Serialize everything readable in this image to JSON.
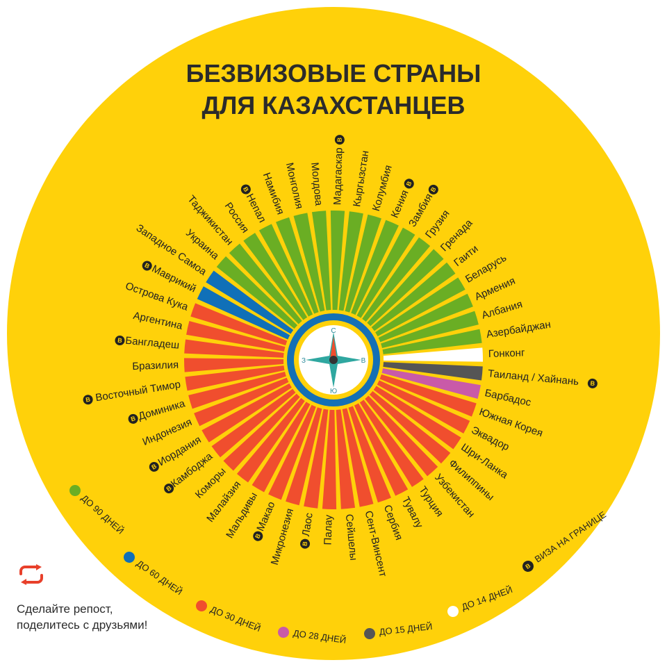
{
  "title": {
    "line1": "БЕЗВИЗОВЫЕ СТРАНЫ",
    "line2": "ДЛЯ КАЗАХСТАНЦЕВ"
  },
  "compass": {
    "n": "С",
    "s": "Ю",
    "w": "З",
    "e": "В"
  },
  "colors": {
    "background": "#FFD10A",
    "90": "#6AAE24",
    "60": "#1070B8",
    "30": "#F04E2E",
    "28": "#C95AA8",
    "15": "#555555",
    "14": "#FFFFFF",
    "ring": "#1470B5",
    "share": "#E8402B"
  },
  "legend": [
    {
      "key": "90",
      "label": "ДО 90 ДНЕЙ"
    },
    {
      "key": "60",
      "label": "ДО 60 ДНЕЙ"
    },
    {
      "key": "30",
      "label": "ДО 30 ДНЕЙ"
    },
    {
      "key": "28",
      "label": "ДО 28 ДНЕЙ"
    },
    {
      "key": "15",
      "label": "ДО 15 ДНЕЙ"
    },
    {
      "key": "14",
      "label": "ДО 14 ДНЕЙ"
    },
    {
      "key": "visa",
      "label": "ВИЗА НА ГРАНИЦЕ"
    }
  ],
  "share": {
    "icon": "repost-icon",
    "text": "Сделайте репост, поделитесь с друзьями!"
  },
  "chart_data": {
    "type": "radial-bar",
    "title": "БЕЗВИЗОВЫЕ СТРАНЫ ДЛЯ КАЗАХСТАНЦЕВ",
    "value_unit": "дней",
    "countries": [
      {
        "name": "Гонконг",
        "days": 14,
        "visa_on_border": false
      },
      {
        "name": "Таиланд / Хайнань",
        "days": 15,
        "visa_on_border": true
      },
      {
        "name": "Барбадос",
        "days": 28,
        "visa_on_border": false
      },
      {
        "name": "Южная Корея",
        "days": 30,
        "visa_on_border": false
      },
      {
        "name": "Эквадор",
        "days": 30,
        "visa_on_border": false
      },
      {
        "name": "Шри-Ланка",
        "days": 30,
        "visa_on_border": false
      },
      {
        "name": "Филиппины",
        "days": 30,
        "visa_on_border": false
      },
      {
        "name": "Узбекистан",
        "days": 30,
        "visa_on_border": false
      },
      {
        "name": "Турция",
        "days": 30,
        "visa_on_border": false
      },
      {
        "name": "Тувалу",
        "days": 30,
        "visa_on_border": false
      },
      {
        "name": "Сербия",
        "days": 30,
        "visa_on_border": false
      },
      {
        "name": "Сент-Винсент",
        "days": 30,
        "visa_on_border": false
      },
      {
        "name": "Сейшелы",
        "days": 30,
        "visa_on_border": false
      },
      {
        "name": "Палау",
        "days": 30,
        "visa_on_border": false
      },
      {
        "name": "Лаос",
        "days": 30,
        "visa_on_border": true
      },
      {
        "name": "Микронезия",
        "days": 30,
        "visa_on_border": false
      },
      {
        "name": "Макао",
        "days": 30,
        "visa_on_border": true
      },
      {
        "name": "Мальдивы",
        "days": 30,
        "visa_on_border": false
      },
      {
        "name": "Малайзия",
        "days": 30,
        "visa_on_border": false
      },
      {
        "name": "Коморы",
        "days": 30,
        "visa_on_border": false
      },
      {
        "name": "Камбоджа",
        "days": 30,
        "visa_on_border": true
      },
      {
        "name": "Иордания",
        "days": 30,
        "visa_on_border": true
      },
      {
        "name": "Индонезия",
        "days": 30,
        "visa_on_border": false
      },
      {
        "name": "Доминика",
        "days": 30,
        "visa_on_border": true
      },
      {
        "name": "Восточный Тимор",
        "days": 30,
        "visa_on_border": true
      },
      {
        "name": "Бразилия",
        "days": 30,
        "visa_on_border": false
      },
      {
        "name": "Бангладеш",
        "days": 30,
        "visa_on_border": true
      },
      {
        "name": "Аргентина",
        "days": 30,
        "visa_on_border": false
      },
      {
        "name": "Острова Кука",
        "days": 30,
        "visa_on_border": false
      },
      {
        "name": "Маврикий",
        "days": 60,
        "visa_on_border": true
      },
      {
        "name": "Западное Самоа",
        "days": 60,
        "visa_on_border": false
      },
      {
        "name": "Украина",
        "days": 90,
        "visa_on_border": false
      },
      {
        "name": "Таджикистан",
        "days": 90,
        "visa_on_border": false
      },
      {
        "name": "Россия",
        "days": 90,
        "visa_on_border": false
      },
      {
        "name": "Непал",
        "days": 90,
        "visa_on_border": true
      },
      {
        "name": "Намибия",
        "days": 90,
        "visa_on_border": false
      },
      {
        "name": "Монголия",
        "days": 90,
        "visa_on_border": false
      },
      {
        "name": "Молдова",
        "days": 90,
        "visa_on_border": false
      },
      {
        "name": "Мадагаскар",
        "days": 90,
        "visa_on_border": true
      },
      {
        "name": "Кыргызстан",
        "days": 90,
        "visa_on_border": false
      },
      {
        "name": "Колумбия",
        "days": 90,
        "visa_on_border": false
      },
      {
        "name": "Кения",
        "days": 90,
        "visa_on_border": true
      },
      {
        "name": "Замбия",
        "days": 90,
        "visa_on_border": true
      },
      {
        "name": "Грузия",
        "days": 90,
        "visa_on_border": false
      },
      {
        "name": "Гренада",
        "days": 90,
        "visa_on_border": false
      },
      {
        "name": "Гаити",
        "days": 90,
        "visa_on_border": false
      },
      {
        "name": "Беларусь",
        "days": 90,
        "visa_on_border": false
      },
      {
        "name": "Армения",
        "days": 90,
        "visa_on_border": false
      },
      {
        "name": "Албания",
        "days": 90,
        "visa_on_border": false
      },
      {
        "name": "Азербайджан",
        "days": 90,
        "visa_on_border": false
      }
    ]
  }
}
